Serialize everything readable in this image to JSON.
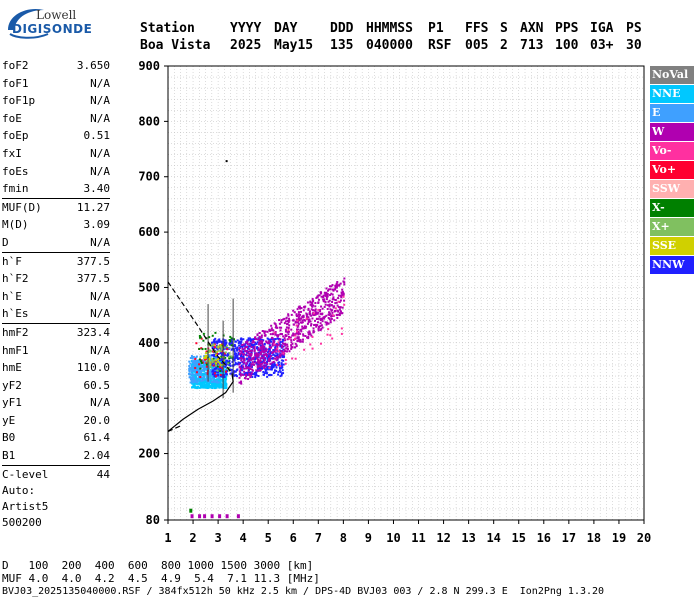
{
  "logo": {
    "top": "Lowell",
    "bottom": "DIGISONDE"
  },
  "header": {
    "labels": [
      "Station",
      "YYYY",
      "DAY",
      "DDD",
      "HHMMSS",
      "P1",
      "FFS",
      "S",
      "AXN",
      "PPS",
      "IGA",
      "PS"
    ],
    "values": [
      "Boa Vista",
      "2025",
      "May15",
      "135",
      "040000",
      "RSF",
      "005",
      "2",
      "713",
      "100",
      "03+",
      "30"
    ]
  },
  "params": [
    {
      "name": "foF2",
      "value": "3.650"
    },
    {
      "name": "foF1",
      "value": "N/A"
    },
    {
      "name": "foF1p",
      "value": "N/A"
    },
    {
      "name": "foE",
      "value": "N/A"
    },
    {
      "name": "foEp",
      "value": "0.51"
    },
    {
      "name": "fxI",
      "value": "N/A"
    },
    {
      "name": "foEs",
      "value": "N/A"
    },
    {
      "name": "fmin",
      "value": "3.40"
    },
    {
      "name": "MUF(D)",
      "value": "11.27",
      "sep": true
    },
    {
      "name": "M(D)",
      "value": "3.09"
    },
    {
      "name": "D",
      "value": "N/A"
    },
    {
      "name": "h`F",
      "value": "377.5",
      "sep": true
    },
    {
      "name": "h`F2",
      "value": "377.5"
    },
    {
      "name": "h`E",
      "value": "N/A"
    },
    {
      "name": "h`Es",
      "value": "N/A"
    },
    {
      "name": "hmF2",
      "value": "323.4",
      "sep": true
    },
    {
      "name": "hmF1",
      "value": "N/A"
    },
    {
      "name": "hmE",
      "value": "110.0"
    },
    {
      "name": "yF2",
      "value": "60.5"
    },
    {
      "name": "yF1",
      "value": "N/A"
    },
    {
      "name": "yE",
      "value": "20.0"
    },
    {
      "name": "B0",
      "value": "61.4"
    },
    {
      "name": "B1",
      "value": "2.04"
    },
    {
      "name": "C-level",
      "value": "44",
      "sep": true
    }
  ],
  "autoscaling": [
    "Auto:",
    "Artist5",
    "500200"
  ],
  "legend": [
    {
      "label": "NoVal",
      "color": "#808080"
    },
    {
      "label": "NNE",
      "color": "#00c8ff"
    },
    {
      "label": "E",
      "color": "#3fa0ff"
    },
    {
      "label": "W",
      "color": "#b000b0"
    },
    {
      "label": "Vo-",
      "color": "#ff30a0"
    },
    {
      "label": "Vo+",
      "color": "#ff0030"
    },
    {
      "label": "SSW",
      "color": "#ffb0b0"
    },
    {
      "label": "X-",
      "color": "#008000"
    },
    {
      "label": "X+",
      "color": "#80c060"
    },
    {
      "label": "SSE",
      "color": "#d0d000"
    },
    {
      "label": "NNW",
      "color": "#2020ff"
    }
  ],
  "footer": {
    "distance_label": "D",
    "distance": "100  200  400  600  800 1000 1500 3000 [km]",
    "muf_label": "MUF",
    "muf": "4.0  4.0  4.2  4.5  4.9  5.4  7.1 11.3 [MHz]",
    "file": "BVJ03_2025135040000.RSF / 384fx512h 50 kHz 2.5 km / DPS-4D BVJ03 003 / 2.8 N 299.3 E  Ion2Png 1.3.20"
  },
  "chart_data": {
    "type": "scatter",
    "title": "",
    "xlabel": "",
    "ylabel": "",
    "xlim": [
      1,
      20
    ],
    "ylim": [
      80,
      900
    ],
    "x_ticks": [
      1,
      2,
      3,
      4,
      5,
      6,
      7,
      8,
      9,
      10,
      11,
      12,
      13,
      14,
      15,
      16,
      17,
      18,
      19,
      20
    ],
    "y_ticks": [
      80,
      200,
      300,
      400,
      500,
      600,
      700,
      800,
      900
    ],
    "grid": true,
    "legend_position": "right",
    "clusters": [
      {
        "name": "NNE",
        "x": [
          1.9,
          3.3
        ],
        "y": [
          320,
          370
        ],
        "density": "dense"
      },
      {
        "name": "E",
        "x": [
          1.8,
          3.0
        ],
        "y": [
          330,
          380
        ],
        "density": "medium"
      },
      {
        "name": "NNW",
        "x": [
          2.7,
          5.6
        ],
        "y": [
          340,
          410
        ],
        "density": "dense"
      },
      {
        "name": "W",
        "x": [
          3.8,
          8.0
        ],
        "y": [
          360,
          530
        ],
        "density": "dense"
      },
      {
        "name": "Vo+",
        "x": [
          2.0,
          3.4
        ],
        "y": [
          340,
          410
        ],
        "density": "sparse"
      },
      {
        "name": "Vo-",
        "x": [
          5.0,
          8.0
        ],
        "y": [
          380,
          480
        ],
        "density": "sparse"
      },
      {
        "name": "X-",
        "x": [
          2.2,
          3.6
        ],
        "y": [
          350,
          420
        ],
        "density": "sparse"
      },
      {
        "name": "SSE",
        "x": [
          2.4,
          3.2
        ],
        "y": [
          360,
          400
        ],
        "density": "sparse"
      },
      {
        "name": "X+",
        "x": [
          2.5,
          3.5
        ],
        "y": [
          350,
          400
        ],
        "density": "sparse"
      }
    ],
    "profile_upper": [
      [
        1,
        510
      ],
      [
        1.6,
        470
      ],
      [
        2.2,
        430
      ],
      [
        2.7,
        395
      ],
      [
        3.0,
        375
      ],
      [
        3.3,
        360
      ],
      [
        3.55,
        345
      ]
    ],
    "profile_lower": [
      [
        3.55,
        345
      ],
      [
        3.6,
        330
      ],
      [
        3.3,
        310
      ],
      [
        2.8,
        295
      ],
      [
        2.2,
        280
      ],
      [
        1.6,
        262
      ],
      [
        1,
        240
      ]
    ],
    "bottom_marks": [
      {
        "x": 1.85,
        "y": 95,
        "color": "#008000"
      },
      {
        "x": 1.9,
        "y": 85,
        "color": "#b000b0"
      },
      {
        "x": 2.2,
        "y": 85,
        "color": "#b000b0"
      },
      {
        "x": 2.4,
        "y": 85,
        "color": "#b000b0"
      },
      {
        "x": 2.7,
        "y": 85,
        "color": "#b000b0"
      },
      {
        "x": 3.0,
        "y": 85,
        "color": "#b000b0"
      },
      {
        "x": 3.3,
        "y": 85,
        "color": "#b000b0"
      },
      {
        "x": 3.75,
        "y": 85,
        "color": "#b000b0"
      }
    ],
    "outliers": [
      {
        "x": 3.3,
        "y": 730,
        "color": "#000000"
      },
      {
        "x": 8.0,
        "y": 518,
        "color": "#b000b0"
      },
      {
        "x": 7.8,
        "y": 505,
        "color": "#b000b0"
      }
    ]
  }
}
